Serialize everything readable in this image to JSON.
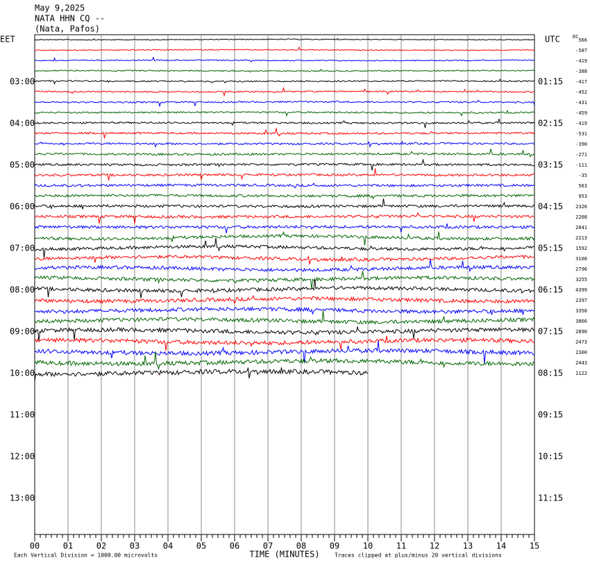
{
  "header": {
    "lines": [
      "May 9,2025",
      "NATA HHN CQ --",
      "(Nata, Pafos)"
    ]
  },
  "left_axis": {
    "title": "EET",
    "labels": [
      "03:00",
      "04:00",
      "05:00",
      "06:00",
      "07:00",
      "08:00",
      "09:00",
      "10:00",
      "11:00",
      "12:00",
      "13:00"
    ]
  },
  "right_axis": {
    "title": "UTC",
    "labels": [
      "01:15",
      "02:15",
      "03:15",
      "04:15",
      "05:15",
      "06:15",
      "07:15",
      "08:15",
      "09:15",
      "10:15",
      "11:15"
    ]
  },
  "offset_title": "DC",
  "trace_offsets": [
    566,
    -587,
    -419,
    -388,
    -417,
    -452,
    -431,
    -459,
    -419,
    -531,
    -390,
    -271,
    -111,
    -35,
    563,
    953,
    2326,
    2208,
    2841,
    2213,
    1592,
    3108,
    2796,
    3255,
    4399,
    2397,
    3358,
    3866,
    2890,
    2473,
    2300,
    2443,
    1122
  ],
  "trace_colors": [
    "#000000",
    "#ff0000",
    "#0000ff",
    "#006400"
  ],
  "x_axis": {
    "title": "TIME (MINUTES)",
    "ticks": [
      "00",
      "01",
      "02",
      "03",
      "04",
      "05",
      "06",
      "07",
      "08",
      "09",
      "10",
      "11",
      "12",
      "13",
      "14",
      "15"
    ]
  },
  "footer": {
    "scale": "Each Vertical Division = 1000.00 microvolts",
    "clip": "Traces clipped at plus/minus 20 vertical divisions"
  }
}
